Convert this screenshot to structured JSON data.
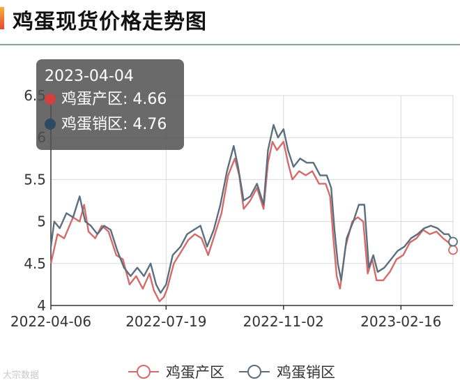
{
  "title": "鸡蛋现货价格走势图",
  "tooltip": {
    "date": "2023-04-04",
    "rows": [
      {
        "name": "鸡蛋产区",
        "value": "4.66",
        "color": "#d13f3f"
      },
      {
        "name": "鸡蛋销区",
        "value": "4.76",
        "color": "#2e4a63"
      }
    ]
  },
  "watermark": "大宗数据",
  "chart_data": {
    "type": "line",
    "title": "鸡蛋现货价格走势图",
    "xlabel": "",
    "ylabel": "",
    "x_range": [
      "2022-04-06",
      "2023-04-04"
    ],
    "x_ticks": [
      "2022-04-06",
      "2022-07-19",
      "2022-11-02",
      "2023-02-16"
    ],
    "ylim": [
      4,
      6.5
    ],
    "y_ticks": [
      "4",
      "4.5",
      "5",
      "5.5",
      "6",
      "6.5"
    ],
    "grid": true,
    "legend": "bottom-center",
    "series": [
      {
        "name": "鸡蛋产区",
        "color": "#d46a6a",
        "points": [
          [
            "2022-04-06",
            4.5
          ],
          [
            "2022-04-12",
            4.85
          ],
          [
            "2022-04-18",
            4.8
          ],
          [
            "2022-04-26",
            5.05
          ],
          [
            "2022-05-02",
            5.0
          ],
          [
            "2022-05-06",
            5.2
          ],
          [
            "2022-05-10",
            4.88
          ],
          [
            "2022-05-16",
            4.8
          ],
          [
            "2022-05-22",
            4.95
          ],
          [
            "2022-05-28",
            4.88
          ],
          [
            "2022-06-04",
            4.6
          ],
          [
            "2022-06-10",
            4.55
          ],
          [
            "2022-06-16",
            4.25
          ],
          [
            "2022-06-22",
            4.35
          ],
          [
            "2022-06-28",
            4.2
          ],
          [
            "2022-07-04",
            4.38
          ],
          [
            "2022-07-08",
            4.18
          ],
          [
            "2022-07-13",
            4.05
          ],
          [
            "2022-07-17",
            4.1
          ],
          [
            "2022-07-20",
            4.2
          ],
          [
            "2022-07-26",
            4.5
          ],
          [
            "2022-08-02",
            4.65
          ],
          [
            "2022-08-08",
            4.78
          ],
          [
            "2022-08-14",
            4.85
          ],
          [
            "2022-08-20",
            4.8
          ],
          [
            "2022-08-26",
            4.6
          ],
          [
            "2022-09-01",
            4.85
          ],
          [
            "2022-09-07",
            5.1
          ],
          [
            "2022-09-13",
            5.55
          ],
          [
            "2022-09-19",
            5.75
          ],
          [
            "2022-09-23",
            5.55
          ],
          [
            "2022-09-27",
            5.15
          ],
          [
            "2022-10-03",
            5.25
          ],
          [
            "2022-10-09",
            5.4
          ],
          [
            "2022-10-15",
            5.15
          ],
          [
            "2022-10-19",
            5.7
          ],
          [
            "2022-10-23",
            5.95
          ],
          [
            "2022-10-27",
            5.85
          ],
          [
            "2022-11-02",
            5.95
          ],
          [
            "2022-11-06",
            5.7
          ],
          [
            "2022-11-10",
            5.5
          ],
          [
            "2022-11-16",
            5.6
          ],
          [
            "2022-11-22",
            5.55
          ],
          [
            "2022-11-28",
            5.6
          ],
          [
            "2022-12-04",
            5.45
          ],
          [
            "2022-12-10",
            5.45
          ],
          [
            "2022-12-14",
            5.3
          ],
          [
            "2022-12-17",
            4.8
          ],
          [
            "2022-12-20",
            4.35
          ],
          [
            "2022-12-23",
            4.2
          ],
          [
            "2022-12-28",
            4.7
          ],
          [
            "2023-01-03",
            5.0
          ],
          [
            "2023-01-08",
            5.05
          ],
          [
            "2023-01-13",
            5.0
          ],
          [
            "2023-01-17",
            4.38
          ],
          [
            "2023-01-21",
            4.55
          ],
          [
            "2023-01-25",
            4.3
          ],
          [
            "2023-01-31",
            4.3
          ],
          [
            "2023-02-06",
            4.4
          ],
          [
            "2023-02-12",
            4.55
          ],
          [
            "2023-02-18",
            4.6
          ],
          [
            "2023-02-24",
            4.75
          ],
          [
            "2023-03-02",
            4.8
          ],
          [
            "2023-03-08",
            4.9
          ],
          [
            "2023-03-14",
            4.85
          ],
          [
            "2023-03-20",
            4.88
          ],
          [
            "2023-03-26",
            4.8
          ],
          [
            "2023-03-31",
            4.75
          ],
          [
            "2023-04-04",
            4.66
          ]
        ]
      },
      {
        "name": "鸡蛋销区",
        "color": "#5a6e7e",
        "points": [
          [
            "2022-04-06",
            4.7
          ],
          [
            "2022-04-09",
            5.0
          ],
          [
            "2022-04-14",
            4.92
          ],
          [
            "2022-04-20",
            5.1
          ],
          [
            "2022-04-26",
            5.05
          ],
          [
            "2022-05-02",
            5.3
          ],
          [
            "2022-05-07",
            5.0
          ],
          [
            "2022-05-12",
            4.95
          ],
          [
            "2022-05-18",
            4.85
          ],
          [
            "2022-05-24",
            4.95
          ],
          [
            "2022-05-30",
            4.9
          ],
          [
            "2022-06-05",
            4.65
          ],
          [
            "2022-06-11",
            4.45
          ],
          [
            "2022-06-17",
            4.35
          ],
          [
            "2022-06-23",
            4.45
          ],
          [
            "2022-06-29",
            4.35
          ],
          [
            "2022-07-05",
            4.5
          ],
          [
            "2022-07-10",
            4.25
          ],
          [
            "2022-07-14",
            4.15
          ],
          [
            "2022-07-19",
            4.25
          ],
          [
            "2022-07-25",
            4.6
          ],
          [
            "2022-08-01",
            4.7
          ],
          [
            "2022-08-07",
            4.85
          ],
          [
            "2022-08-13",
            4.9
          ],
          [
            "2022-08-19",
            4.95
          ],
          [
            "2022-08-25",
            4.7
          ],
          [
            "2022-08-31",
            4.9
          ],
          [
            "2022-09-06",
            5.2
          ],
          [
            "2022-09-12",
            5.6
          ],
          [
            "2022-09-18",
            5.9
          ],
          [
            "2022-09-22",
            5.65
          ],
          [
            "2022-09-27",
            5.25
          ],
          [
            "2022-10-03",
            5.3
          ],
          [
            "2022-10-09",
            5.45
          ],
          [
            "2022-10-15",
            5.2
          ],
          [
            "2022-10-19",
            5.85
          ],
          [
            "2022-10-24",
            6.15
          ],
          [
            "2022-10-28",
            6.0
          ],
          [
            "2022-11-02",
            6.1
          ],
          [
            "2022-11-06",
            5.85
          ],
          [
            "2022-11-11",
            5.65
          ],
          [
            "2022-11-17",
            5.75
          ],
          [
            "2022-11-23",
            5.7
          ],
          [
            "2022-11-29",
            5.7
          ],
          [
            "2022-12-05",
            5.55
          ],
          [
            "2022-12-11",
            5.55
          ],
          [
            "2022-12-15",
            5.4
          ],
          [
            "2022-12-18",
            4.9
          ],
          [
            "2022-12-21",
            4.5
          ],
          [
            "2022-12-24",
            4.3
          ],
          [
            "2022-12-29",
            4.8
          ],
          [
            "2023-01-04",
            5.0
          ],
          [
            "2023-01-09",
            5.2
          ],
          [
            "2023-01-14",
            5.2
          ],
          [
            "2023-01-18",
            4.45
          ],
          [
            "2023-01-22",
            4.6
          ],
          [
            "2023-01-26",
            4.4
          ],
          [
            "2023-02-01",
            4.45
          ],
          [
            "2023-02-07",
            4.55
          ],
          [
            "2023-02-13",
            4.65
          ],
          [
            "2023-02-19",
            4.7
          ],
          [
            "2023-02-25",
            4.8
          ],
          [
            "2023-03-03",
            4.85
          ],
          [
            "2023-03-09",
            4.92
          ],
          [
            "2023-03-15",
            4.95
          ],
          [
            "2023-03-21",
            4.92
          ],
          [
            "2023-03-27",
            4.85
          ],
          [
            "2023-03-31",
            4.85
          ],
          [
            "2023-04-04",
            4.76
          ]
        ]
      }
    ]
  }
}
